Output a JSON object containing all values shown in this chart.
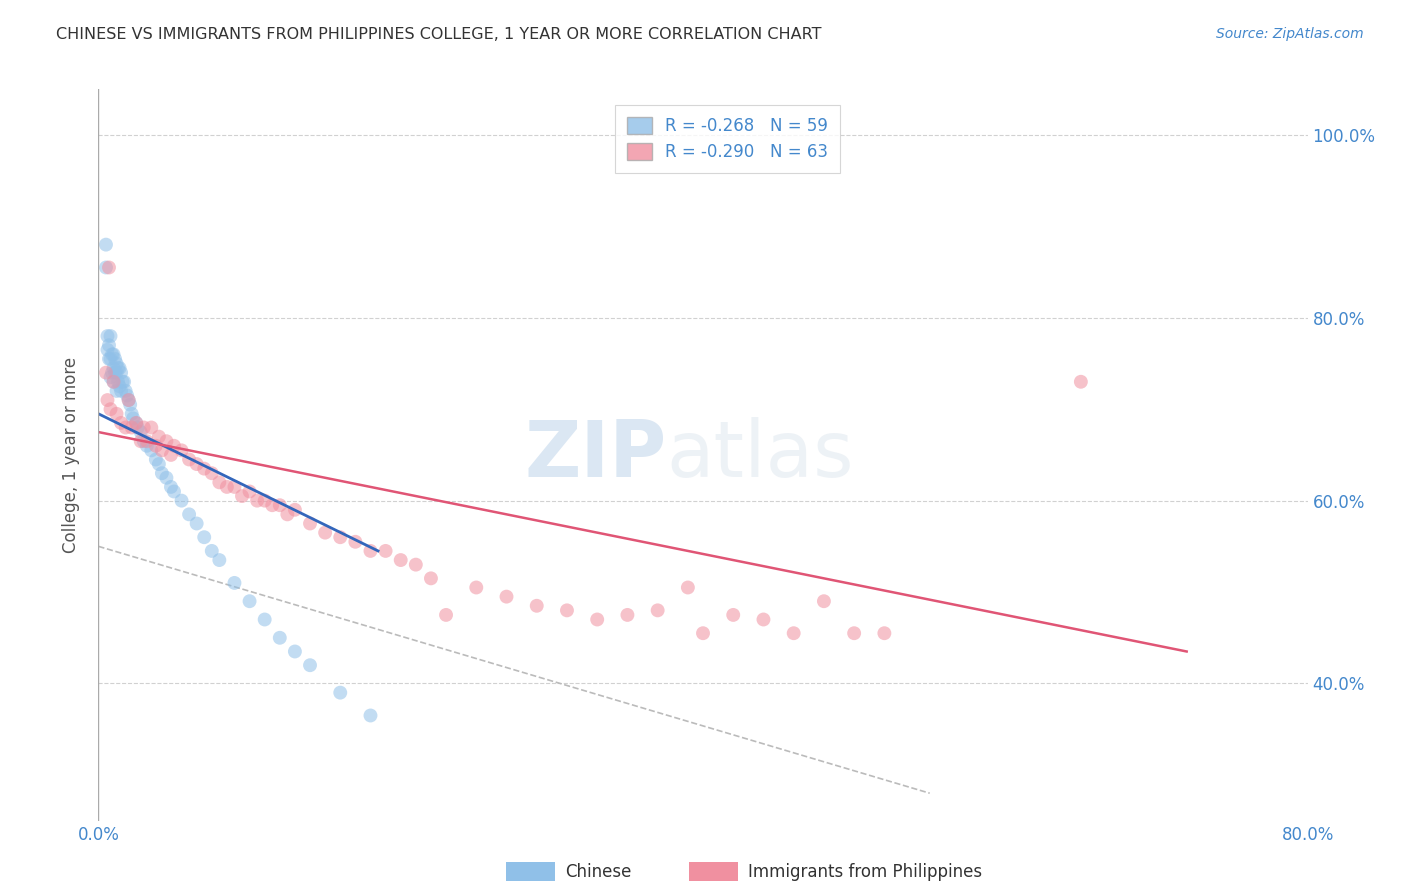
{
  "title": "CHINESE VS IMMIGRANTS FROM PHILIPPINES COLLEGE, 1 YEAR OR MORE CORRELATION CHART",
  "source": "Source: ZipAtlas.com",
  "ylabel": "College, 1 year or more",
  "xlim": [
    0.0,
    0.8
  ],
  "ylim": [
    0.25,
    1.05
  ],
  "right_ytick_vals": [
    0.4,
    0.6,
    0.8,
    1.0
  ],
  "right_ytick_labels": [
    "40.0%",
    "60.0%",
    "80.0%",
    "100.0%"
  ],
  "xtick_vals": [
    0.0,
    0.2,
    0.4,
    0.6,
    0.8
  ],
  "xtick_labels": [
    "0.0%",
    "",
    "",
    "",
    "80.0%"
  ],
  "watermark_part1": "ZIP",
  "watermark_part2": "atlas",
  "chinese_color": "#90c0e8",
  "philippines_color": "#f090a0",
  "chinese_line_color": "#3366bb",
  "philippines_line_color": "#e05575",
  "dashed_line_color": "#bbbbbb",
  "background_color": "#ffffff",
  "grid_color": "#cccccc",
  "axis_color": "#aaaaaa",
  "tick_label_color": "#4488cc",
  "title_color": "#333333",
  "ylabel_color": "#555555",
  "chinese_x": [
    0.005,
    0.005,
    0.006,
    0.006,
    0.007,
    0.007,
    0.008,
    0.008,
    0.008,
    0.009,
    0.009,
    0.01,
    0.01,
    0.01,
    0.011,
    0.011,
    0.012,
    0.012,
    0.012,
    0.013,
    0.013,
    0.014,
    0.014,
    0.015,
    0.015,
    0.016,
    0.017,
    0.018,
    0.019,
    0.02,
    0.021,
    0.022,
    0.023,
    0.025,
    0.026,
    0.028,
    0.03,
    0.032,
    0.035,
    0.038,
    0.04,
    0.042,
    0.045,
    0.048,
    0.05,
    0.055,
    0.06,
    0.065,
    0.07,
    0.075,
    0.08,
    0.09,
    0.1,
    0.11,
    0.12,
    0.13,
    0.14,
    0.16,
    0.18
  ],
  "chinese_y": [
    0.88,
    0.855,
    0.78,
    0.765,
    0.77,
    0.755,
    0.78,
    0.755,
    0.735,
    0.76,
    0.74,
    0.76,
    0.745,
    0.73,
    0.755,
    0.74,
    0.75,
    0.74,
    0.72,
    0.745,
    0.73,
    0.745,
    0.725,
    0.74,
    0.72,
    0.73,
    0.73,
    0.72,
    0.715,
    0.71,
    0.705,
    0.695,
    0.69,
    0.685,
    0.68,
    0.675,
    0.665,
    0.66,
    0.655,
    0.645,
    0.64,
    0.63,
    0.625,
    0.615,
    0.61,
    0.6,
    0.585,
    0.575,
    0.56,
    0.545,
    0.535,
    0.51,
    0.49,
    0.47,
    0.45,
    0.435,
    0.42,
    0.39,
    0.365
  ],
  "philippines_x": [
    0.005,
    0.006,
    0.007,
    0.008,
    0.01,
    0.012,
    0.015,
    0.018,
    0.02,
    0.022,
    0.025,
    0.028,
    0.03,
    0.032,
    0.035,
    0.038,
    0.04,
    0.042,
    0.045,
    0.048,
    0.05,
    0.055,
    0.06,
    0.065,
    0.07,
    0.075,
    0.08,
    0.085,
    0.09,
    0.095,
    0.1,
    0.105,
    0.11,
    0.115,
    0.12,
    0.125,
    0.13,
    0.14,
    0.15,
    0.16,
    0.17,
    0.18,
    0.19,
    0.2,
    0.21,
    0.22,
    0.23,
    0.25,
    0.27,
    0.29,
    0.31,
    0.33,
    0.35,
    0.37,
    0.39,
    0.4,
    0.42,
    0.44,
    0.46,
    0.48,
    0.5,
    0.52,
    0.65
  ],
  "philippines_y": [
    0.74,
    0.71,
    0.855,
    0.7,
    0.73,
    0.695,
    0.685,
    0.68,
    0.71,
    0.68,
    0.685,
    0.665,
    0.68,
    0.665,
    0.68,
    0.66,
    0.67,
    0.655,
    0.665,
    0.65,
    0.66,
    0.655,
    0.645,
    0.64,
    0.635,
    0.63,
    0.62,
    0.615,
    0.615,
    0.605,
    0.61,
    0.6,
    0.6,
    0.595,
    0.595,
    0.585,
    0.59,
    0.575,
    0.565,
    0.56,
    0.555,
    0.545,
    0.545,
    0.535,
    0.53,
    0.515,
    0.475,
    0.505,
    0.495,
    0.485,
    0.48,
    0.47,
    0.475,
    0.48,
    0.505,
    0.455,
    0.475,
    0.47,
    0.455,
    0.49,
    0.455,
    0.455,
    0.73
  ],
  "chinese_regline_x": [
    0.0,
    0.185
  ],
  "chinese_regline_y": [
    0.695,
    0.545
  ],
  "philippines_regline_x": [
    0.0,
    0.72
  ],
  "philippines_regline_y": [
    0.675,
    0.435
  ],
  "dashed_line_x": [
    0.0,
    0.55
  ],
  "dashed_line_y": [
    0.55,
    0.28
  ]
}
